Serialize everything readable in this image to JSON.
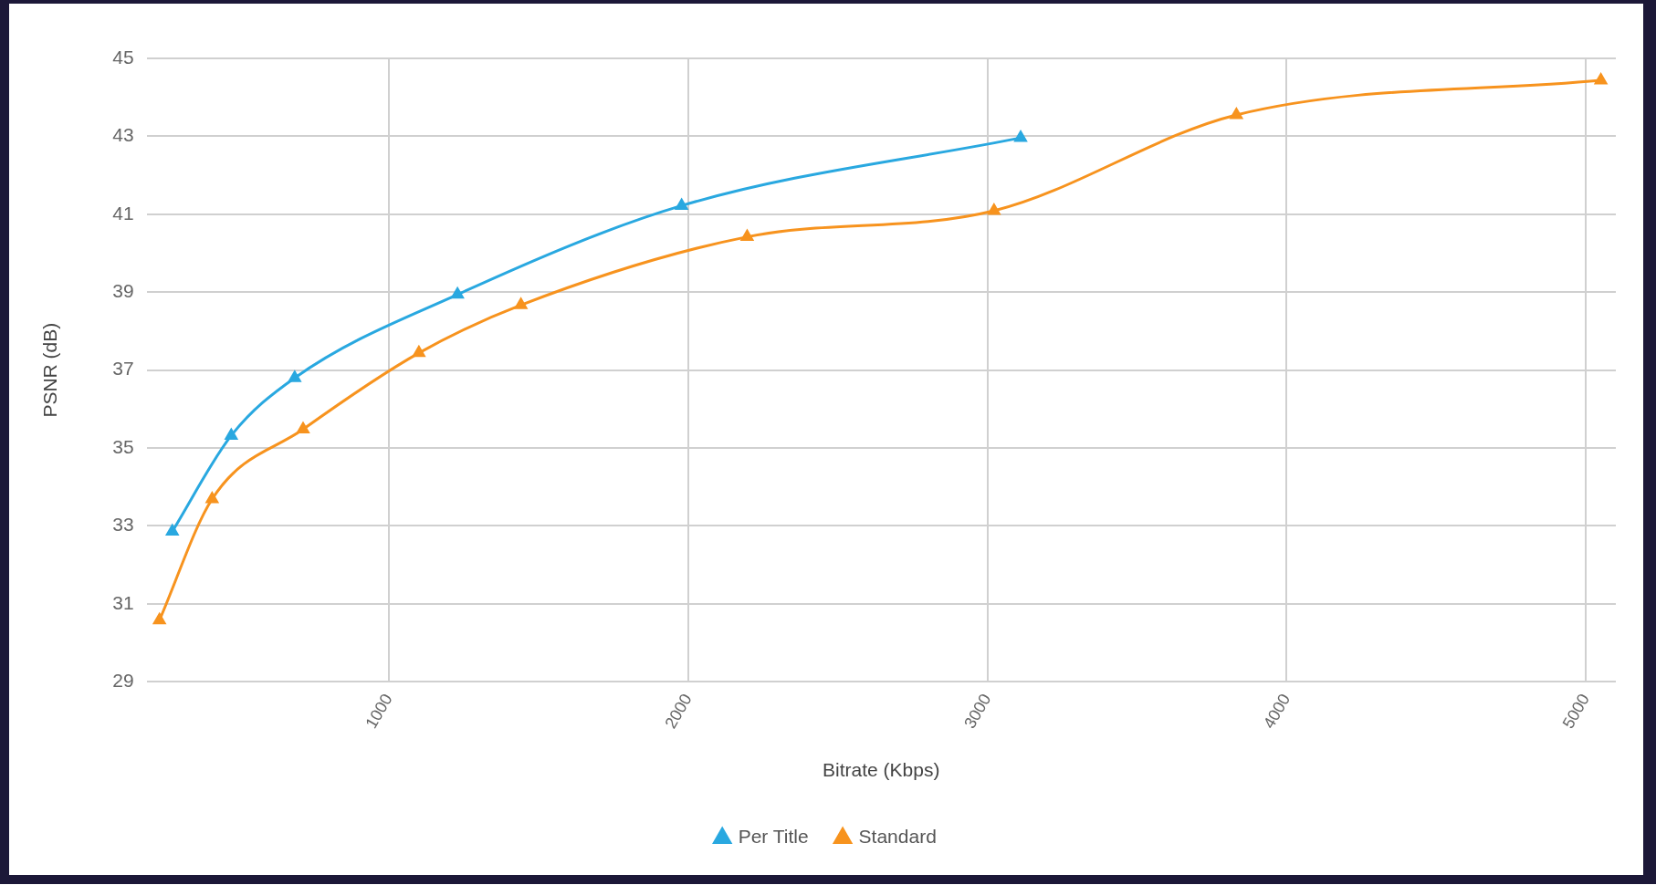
{
  "chart_data": {
    "type": "line",
    "xlabel": "Bitrate (Kbps)",
    "ylabel": "PSNR (dB)",
    "xlim": [
      190,
      5100
    ],
    "xticks": [
      1000,
      2000,
      3000,
      4000,
      5000
    ],
    "ylim": [
      29,
      45
    ],
    "yticks": [
      29,
      31,
      33,
      35,
      37,
      39,
      41,
      43,
      45
    ],
    "grid": true,
    "legend": "bottom",
    "marker": "triangle",
    "line_style": "solid",
    "series": [
      {
        "name": "Per Title",
        "color": "#29a8e0",
        "x": [
          276,
          473,
          685,
          1229,
          1978,
          3111
        ],
        "values": [
          32.86,
          35.32,
          36.8,
          38.94,
          41.22,
          42.96
        ]
      },
      {
        "name": "Standard",
        "color": "#f7931e",
        "x": [
          233,
          409,
          713,
          1100,
          1441,
          2197,
          3022,
          3832,
          5050
        ],
        "values": [
          30.58,
          33.69,
          35.48,
          37.44,
          38.67,
          40.42,
          41.09,
          43.55,
          44.44
        ]
      }
    ]
  }
}
